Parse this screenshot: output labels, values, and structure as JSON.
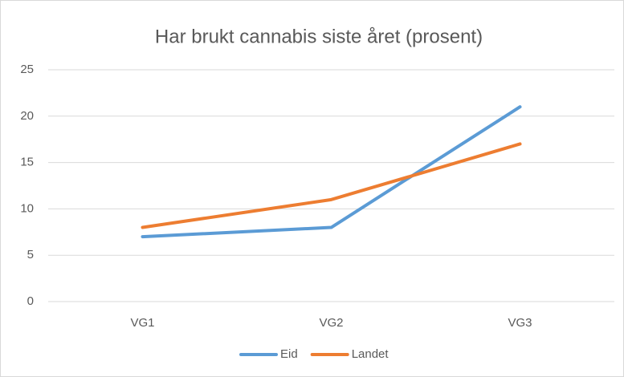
{
  "chart_data": {
    "type": "line",
    "title": "Har brukt cannabis siste året (prosent)",
    "categories": [
      "VG1",
      "VG2",
      "VG3"
    ],
    "series": [
      {
        "name": "Eid",
        "color": "#5b9bd5",
        "values": [
          7,
          8,
          21
        ]
      },
      {
        "name": "Landet",
        "color": "#ed7d31",
        "values": [
          8,
          11,
          17
        ]
      }
    ],
    "ylim": [
      0,
      25
    ],
    "yticks": [
      0,
      5,
      10,
      15,
      20,
      25
    ],
    "grid": true
  }
}
